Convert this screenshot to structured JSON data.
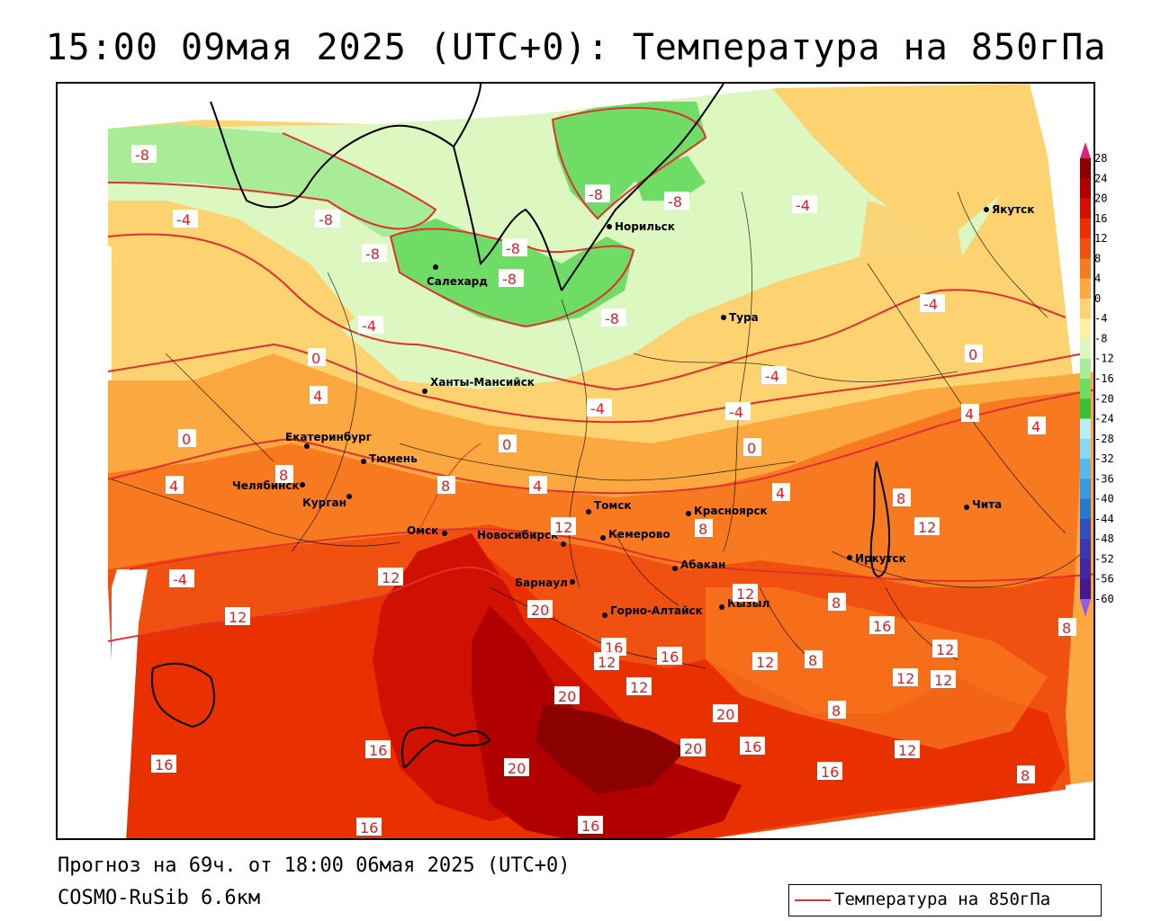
{
  "title": "15:00 09мая 2025 (UTC+0): Температура на 850гПа",
  "footer": {
    "forecast": "Прогноз на 69ч. от 18:00 06мая 2025 (UTC+0)",
    "model": "COSMO-RuSib 6.6км"
  },
  "legend": {
    "label": "Температура на 850гПа",
    "line_color": "#e03030"
  },
  "colorbar": {
    "ticks": [
      "28",
      "24",
      "20",
      "16",
      "12",
      "8",
      "4",
      "0",
      "-4",
      "-8",
      "-12",
      "-16",
      "-20",
      "-24",
      "-28",
      "-32",
      "-36",
      "-40",
      "-44",
      "-48",
      "-52",
      "-56",
      "-60"
    ],
    "colors": [
      "#8b0000",
      "#b00000",
      "#d01000",
      "#e83000",
      "#f05010",
      "#f87a20",
      "#fba840",
      "#fdd270",
      "#fff0a0",
      "#ddf7c0",
      "#a8ec98",
      "#6fdc66",
      "#38c038",
      "#b8f0f8",
      "#88d8f4",
      "#58b8ec",
      "#3898e0",
      "#2878d0",
      "#3050c0",
      "#3838b0",
      "#4028a0",
      "#401890"
    ],
    "top_arrow_color": "#e0207a",
    "bottom_arrow_color": "#9060e0"
  },
  "cities": [
    {
      "name": "Норильск"
    },
    {
      "name": "Якутск"
    },
    {
      "name": "Салехард"
    },
    {
      "name": "Тура"
    },
    {
      "name": "Ханты-Мансийск"
    },
    {
      "name": "Екатеринбург"
    },
    {
      "name": "Тюмень"
    },
    {
      "name": "Челябинск"
    },
    {
      "name": "Курган"
    },
    {
      "name": "Омск"
    },
    {
      "name": "Новосибирск"
    },
    {
      "name": "Томск"
    },
    {
      "name": "Кемерово"
    },
    {
      "name": "Красноярск"
    },
    {
      "name": "Абакан"
    },
    {
      "name": "Барнаул"
    },
    {
      "name": "Горно-Алтайск"
    },
    {
      "name": "Кызыл"
    },
    {
      "name": "Иркутск"
    },
    {
      "name": "Чита"
    }
  ],
  "isotherm_labels": [
    "-8",
    "-4",
    "-8",
    "-8",
    "-8",
    "-8",
    "-8",
    "-8",
    "-4",
    "-4",
    "-4",
    "-8",
    "-4",
    "-4",
    "-4",
    "-4",
    "0",
    "0",
    "4",
    "0",
    "0",
    "4",
    "4",
    "8",
    "4",
    "4",
    "8",
    "0",
    "4",
    "8",
    "12",
    "8",
    "12",
    "12",
    "12",
    "16",
    "20",
    "16",
    "12",
    "12",
    "16",
    "12",
    "16",
    "8",
    "8",
    "12",
    "12",
    "12",
    "8",
    "16",
    "16",
    "20",
    "16",
    "20",
    "20",
    "12",
    "16",
    "20",
    "16",
    "8",
    "8",
    "12"
  ]
}
